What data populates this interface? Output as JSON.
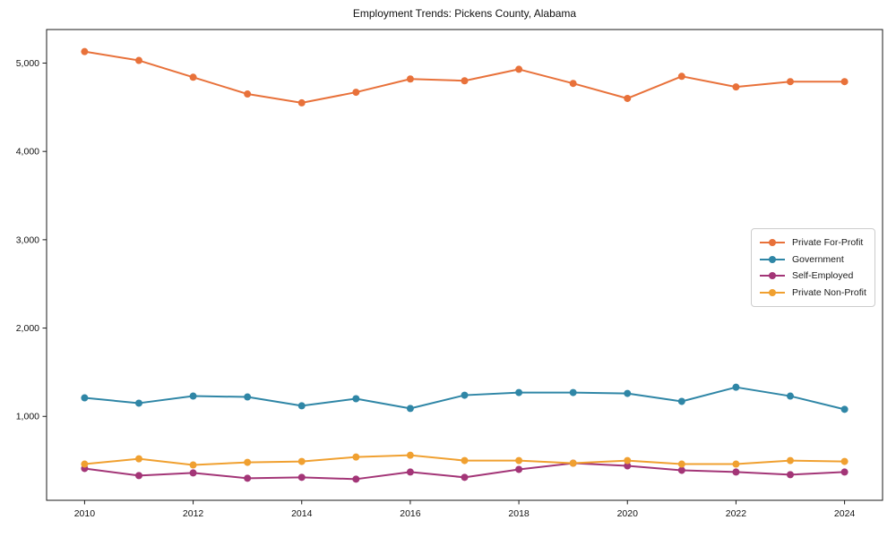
{
  "chart_data": {
    "type": "line",
    "title": "Employment Trends: Pickens County, Alabama",
    "xlabel": "",
    "ylabel": "",
    "x": [
      2010,
      2011,
      2012,
      2013,
      2014,
      2015,
      2016,
      2017,
      2018,
      2019,
      2020,
      2021,
      2022,
      2023,
      2024
    ],
    "xticks": [
      2010,
      2012,
      2014,
      2016,
      2018,
      2020,
      2022,
      2024
    ],
    "xtick_labels": [
      "2010",
      "2012",
      "2014",
      "2016",
      "2018",
      "2020",
      "2022",
      "2024"
    ],
    "yticks": [
      1000,
      2000,
      3000,
      4000,
      5000
    ],
    "ytick_labels": [
      "1,000",
      "2,000",
      "3,000",
      "4,000",
      "5,000"
    ],
    "xlim": [
      2009.3,
      2024.7
    ],
    "ylim": [
      50,
      5380
    ],
    "grid": false,
    "frame": "box",
    "frame_color": "#1a1a1a",
    "legend_position": "center-right",
    "series": [
      {
        "name": "Private For-Profit",
        "color": "#e8713a",
        "values": [
          5130,
          5030,
          4840,
          4650,
          4550,
          4670,
          4820,
          4800,
          4930,
          4770,
          4600,
          4850,
          4730,
          4790,
          4790
        ]
      },
      {
        "name": "Government",
        "color": "#2f86a6",
        "values": [
          1210,
          1150,
          1230,
          1220,
          1120,
          1200,
          1090,
          1240,
          1270,
          1270,
          1260,
          1170,
          1330,
          1230,
          1080
        ]
      },
      {
        "name": "Self-Employed",
        "color": "#a33577",
        "values": [
          410,
          330,
          360,
          300,
          310,
          290,
          370,
          310,
          400,
          470,
          440,
          390,
          370,
          340,
          370
        ]
      },
      {
        "name": "Private Non-Profit",
        "color": "#f0a030",
        "values": [
          460,
          520,
          450,
          480,
          490,
          540,
          560,
          500,
          500,
          470,
          500,
          460,
          460,
          500,
          490
        ]
      }
    ]
  }
}
